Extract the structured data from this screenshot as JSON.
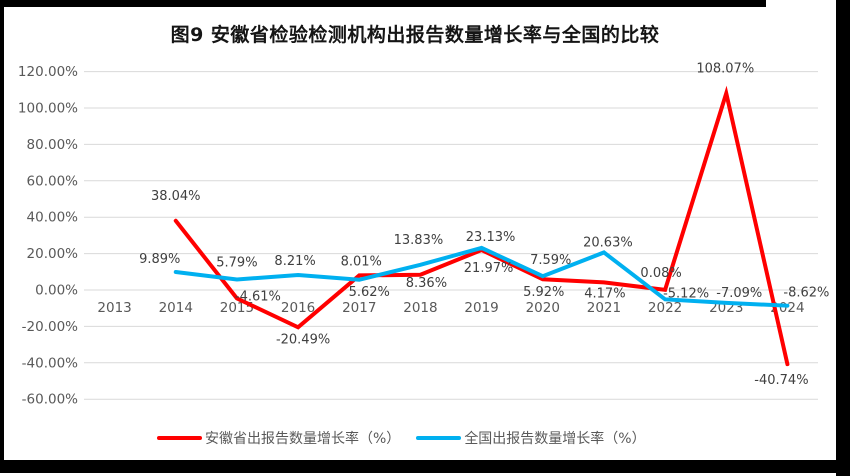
{
  "chart_data": {
    "type": "line",
    "title": "图9 安徽省检验检测机构出报告数量增长率与全国的比较",
    "categories": [
      "2013",
      "2014",
      "2015",
      "2016",
      "2017",
      "2018",
      "2019",
      "2020",
      "2021",
      "2022",
      "2023",
      "2024"
    ],
    "series": [
      {
        "name": "安徽省出报告数量增长率（%）",
        "color": "#FF0000",
        "values": [
          null,
          38.04,
          -4.61,
          -20.49,
          8.01,
          8.36,
          21.97,
          5.92,
          4.17,
          0.08,
          108.07,
          -40.74
        ],
        "labels": [
          "",
          "38.04%",
          "-4.61%",
          "-20.49%",
          "8.01%",
          "8.36%",
          "21.97%",
          "5.92%",
          "4.17%",
          "0.08%",
          "108.07%",
          "-40.74%"
        ]
      },
      {
        "name": "全国出报告数量增长率（%）",
        "color": "#00B0F0",
        "values": [
          null,
          9.89,
          5.79,
          8.21,
          5.62,
          13.83,
          23.13,
          7.59,
          20.63,
          -5.12,
          -7.09,
          -8.62
        ],
        "labels": [
          "",
          "9.89%",
          "5.79%",
          "8.21%",
          "5.62%",
          "13.83%",
          "23.13%",
          "7.59%",
          "20.63%",
          "-5.12%",
          "-7.09%",
          "-8.62%"
        ]
      }
    ],
    "y_ticks": [
      "120.00%",
      "100.00%",
      "80.00%",
      "60.00%",
      "40.00%",
      "20.00%",
      "0.00%",
      "-20.00%",
      "-40.00%",
      "-60.00%"
    ],
    "y_tick_values": [
      120,
      100,
      80,
      60,
      40,
      20,
      0,
      -20,
      -40,
      -60
    ],
    "ylim": [
      -60,
      120
    ],
    "grid": true,
    "legend_position": "bottom",
    "colors": {
      "gridline": "#D9D9D9",
      "axis_text": "#595959",
      "data_label_text": "#404040",
      "frame": "#000000",
      "background": "#FFFFFF"
    }
  }
}
